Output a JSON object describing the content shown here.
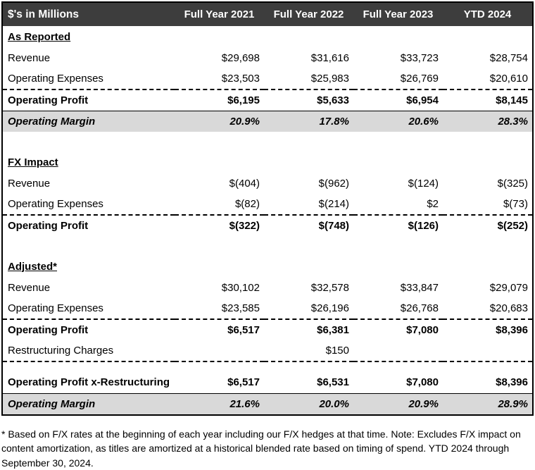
{
  "title_cell": "$'s in Millions",
  "columns": [
    "Full Year 2021",
    "Full Year 2022",
    "Full Year 2023",
    "YTD 2024"
  ],
  "colors": {
    "header_bg": "#3d3d3d",
    "header_text": "#ffffff",
    "margin_row_bg": "#d9d9d9",
    "border": "#000000"
  },
  "rows": [
    {
      "type": "section",
      "label": "As Reported"
    },
    {
      "type": "row",
      "label": "Revenue",
      "values": [
        "$29,698",
        "$31,616",
        "$33,723",
        "$28,754"
      ]
    },
    {
      "type": "row",
      "label": "Operating Expenses",
      "values": [
        "$23,503",
        "$25,983",
        "$26,769",
        "$20,610"
      ],
      "dashed_bottom": true
    },
    {
      "type": "total",
      "label": "Operating Profit",
      "values": [
        "$6,195",
        "$5,633",
        "$6,954",
        "$8,145"
      ]
    },
    {
      "type": "margin",
      "label": "Operating Margin",
      "values": [
        "20.9%",
        "17.8%",
        "20.6%",
        "28.3%"
      ]
    },
    {
      "type": "spacer"
    },
    {
      "type": "section",
      "label": "FX Impact"
    },
    {
      "type": "row",
      "label": "Revenue",
      "values": [
        "$(404)",
        "$(962)",
        "$(124)",
        "$(325)"
      ]
    },
    {
      "type": "row",
      "label": "Operating Expenses",
      "values": [
        "$(82)",
        "$(214)",
        "$2",
        "$(73)"
      ],
      "dashed_bottom": true
    },
    {
      "type": "total",
      "label": "Operating Profit",
      "values": [
        "$(322)",
        "$(748)",
        "$(126)",
        "$(252)"
      ]
    },
    {
      "type": "spacer"
    },
    {
      "type": "section",
      "label": "Adjusted*"
    },
    {
      "type": "row",
      "label": "Revenue",
      "values": [
        "$30,102",
        "$32,578",
        "$33,847",
        "$29,079"
      ]
    },
    {
      "type": "row",
      "label": "Operating Expenses",
      "values": [
        "$23,585",
        "$26,196",
        "$26,768",
        "$20,683"
      ],
      "dashed_bottom": true
    },
    {
      "type": "total",
      "label": "Operating Profit",
      "values": [
        "$6,517",
        "$6,381",
        "$7,080",
        "$8,396"
      ]
    },
    {
      "type": "row",
      "label": "Restructuring Charges",
      "values": [
        "",
        "$150",
        "",
        ""
      ],
      "dashed_bottom": true
    },
    {
      "type": "spacer-sm"
    },
    {
      "type": "total",
      "label": "Operating Profit x-Restructuring",
      "values": [
        "$6,517",
        "$6,531",
        "$7,080",
        "$8,396"
      ]
    },
    {
      "type": "margin",
      "label": "Operating Margin",
      "values": [
        "21.6%",
        "20.0%",
        "20.9%",
        "28.9%"
      ]
    }
  ],
  "footnote": "* Based on F/X rates at the beginning of each year including our F/X hedges at that time. Note: Excludes F/X impact on content amortization, as titles are amortized at a historical blended rate based on timing of spend. YTD 2024 through September 30, 2024."
}
